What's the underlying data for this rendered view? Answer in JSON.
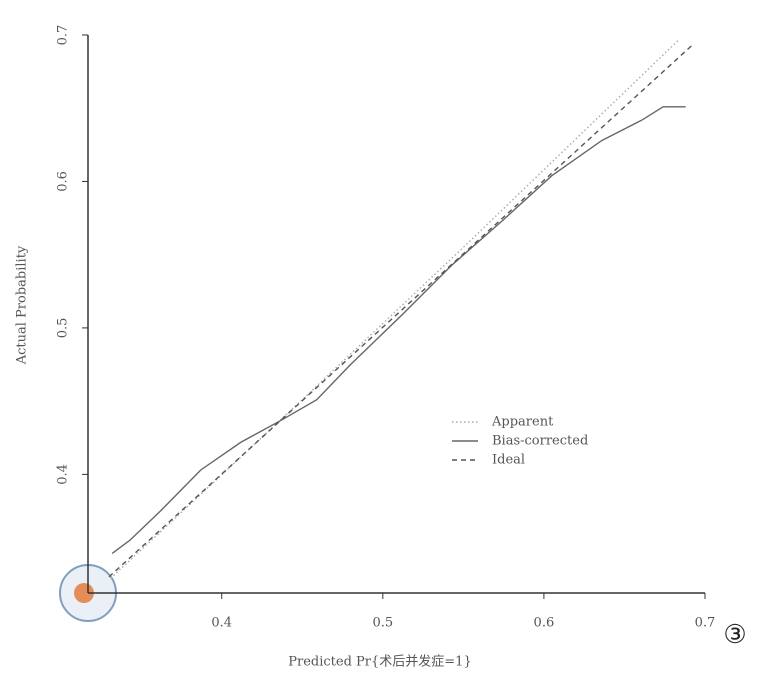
{
  "chart_data": {
    "type": "line",
    "xlabel": "Predicted Pr{术后并发症=1}",
    "ylabel": "Actual Probability",
    "annotation": "③",
    "xlim": [
      0.317,
      0.7
    ],
    "ylim": [
      0.319,
      0.7
    ],
    "xticks": [
      0.4,
      0.5,
      0.6,
      0.7
    ],
    "yticks": [
      0.4,
      0.5,
      0.6,
      0.7
    ],
    "legend_loc": "center right",
    "series": [
      {
        "name": "Apparent",
        "color": "#aaaaaa",
        "style": "dotted",
        "x": [
          0.331,
          0.45,
          0.55,
          0.684
        ],
        "values": [
          0.329,
          0.451,
          0.555,
          0.697
        ]
      },
      {
        "name": "Bias-corrected",
        "color": "#666666",
        "style": "solid",
        "x": [
          0.332,
          0.343,
          0.362,
          0.387,
          0.412,
          0.437,
          0.459,
          0.48,
          0.512,
          0.543,
          0.574,
          0.605,
          0.636,
          0.661,
          0.674,
          0.681,
          0.688
        ],
        "values": [
          0.346,
          0.355,
          0.375,
          0.403,
          0.422,
          0.437,
          0.451,
          0.475,
          0.509,
          0.543,
          0.573,
          0.604,
          0.628,
          0.642,
          0.651,
          0.651,
          0.651
        ]
      },
      {
        "name": "Ideal",
        "color": "#555555",
        "style": "dashed",
        "x": [
          0.33,
          0.692
        ],
        "values": [
          0.33,
          0.693
        ]
      }
    ]
  }
}
